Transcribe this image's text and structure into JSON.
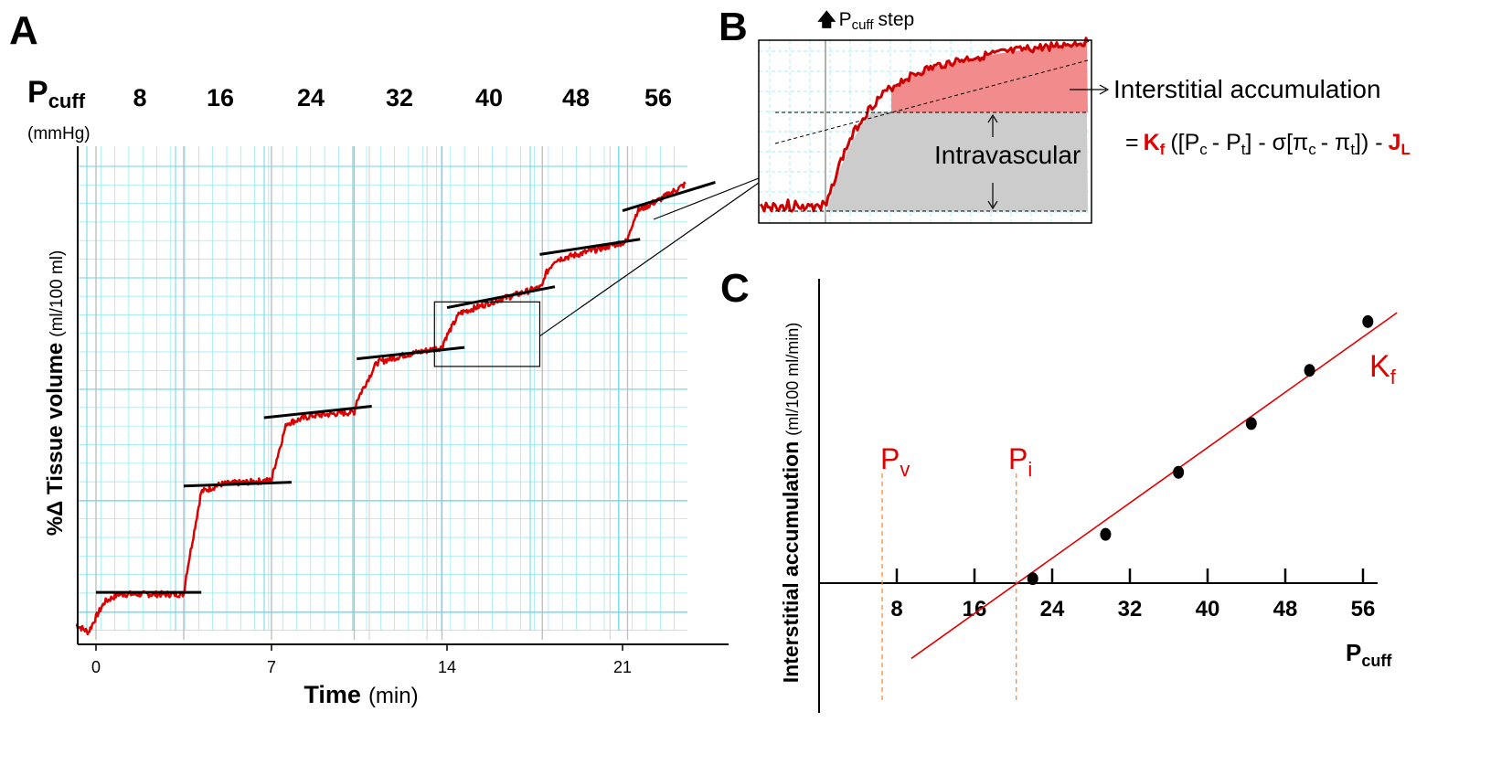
{
  "colors": {
    "trace": "#dd0000",
    "grid": "#8de8f0",
    "fit": "#000000",
    "accent": "#e00000",
    "fill": "#f28b8b",
    "gray": "#cccccc"
  },
  "panel_a": {
    "label": "A",
    "pcuff_main": "P",
    "pcuff_sub": "cuff",
    "unit": "(mmHg)",
    "ylabel_bold": "%Δ Tissue volume",
    "ylabel_unit": "(ml/100 ml)",
    "xlabel_bold": "Time",
    "xlabel_unit": "(min)"
  },
  "panel_b": {
    "label": "B",
    "step_arrow": "🡅",
    "step_p": "P",
    "step_sub": "cuff",
    "step_rest": "step",
    "interstitial_label": "Interstitial accumulation",
    "intravascular_label": "Intravascular",
    "eq_eq": "=",
    "eq_kf": "K",
    "eq_kf_sub": "f",
    "eq_a": "([P",
    "eq_pc_sub": "c",
    "eq_b": "- P",
    "eq_pt_sub": "t",
    "eq_c": "] - σ[π",
    "eq_pic_sub": "c",
    "eq_d": "- π",
    "eq_pit_sub": "t",
    "eq_e": "]) -",
    "eq_jl": "J",
    "eq_jl_sub": "L"
  },
  "panel_c": {
    "label": "C",
    "ylabel_bold": "Interstitial accumulation",
    "ylabel_unit": "(ml/100 ml/min)",
    "xlabel_main": "P",
    "xlabel_sub": "cuff",
    "pv_main": "P",
    "pv_sub": "v",
    "pi_main": "P",
    "pi_sub": "i",
    "kf_main": "K",
    "kf_sub": "f"
  },
  "chart_data": [
    {
      "panel": "A",
      "type": "line",
      "x_label": "Time (min)",
      "y_label": "%Δ Tissue volume (ml/100 ml)",
      "xlim": [
        -0.8,
        25
      ],
      "ylim": [
        0,
        13
      ],
      "x_ticks": [
        "0",
        "7",
        "14",
        "21"
      ],
      "x_tick_values": [
        0,
        7,
        14,
        21
      ],
      "pcuff_steps": [
        "8",
        "16",
        "24",
        "32",
        "40",
        "48",
        "56"
      ],
      "step_times": [
        0,
        3.5,
        7,
        10.3,
        13.8,
        17.8,
        21.2
      ],
      "plateau_levels": [
        0.6,
        3.2,
        5.2,
        6.8,
        8.2,
        9.5,
        10.9,
        12.6
      ],
      "trace_end": 23.5,
      "series": [
        {
          "values": [
            [
              -0.8,
              0.4
            ],
            [
              -0.3,
              0.2
            ],
            [
              0,
              0.6
            ],
            [
              0.35,
              1.0
            ],
            [
              0.9,
              1.2
            ],
            [
              3.5,
              1.2
            ],
            [
              3.6,
              1.7
            ],
            [
              4.2,
              3.9
            ],
            [
              5.0,
              4.1
            ],
            [
              7.0,
              4.2
            ],
            [
              7.1,
              4.5
            ],
            [
              7.6,
              5.7
            ],
            [
              8.6,
              5.9
            ],
            [
              10.3,
              6.0
            ],
            [
              10.4,
              6.3
            ],
            [
              11.2,
              7.3
            ],
            [
              12.3,
              7.5
            ],
            [
              13.8,
              7.7
            ],
            [
              13.9,
              7.9
            ],
            [
              14.5,
              8.6
            ],
            [
              15.8,
              8.9
            ],
            [
              17.3,
              9.2
            ],
            [
              17.8,
              9.3
            ],
            [
              17.9,
              9.6
            ],
            [
              18.3,
              10.0
            ],
            [
              19.5,
              10.2
            ],
            [
              21.2,
              10.5
            ],
            [
              21.3,
              10.8
            ],
            [
              21.6,
              11.3
            ],
            [
              22.5,
              11.6
            ],
            [
              23.5,
              12.0
            ]
          ]
        }
      ],
      "fit_lines": [
        [
          [
            0,
            1.25
          ],
          [
            4.2,
            1.25
          ]
        ],
        [
          [
            3.5,
            4.05
          ],
          [
            7.8,
            4.15
          ]
        ],
        [
          [
            6.7,
            5.85
          ],
          [
            11.0,
            6.15
          ]
        ],
        [
          [
            10.4,
            7.4
          ],
          [
            14.7,
            7.7
          ]
        ],
        [
          [
            14.0,
            8.75
          ],
          [
            18.3,
            9.3
          ]
        ],
        [
          [
            17.7,
            10.15
          ],
          [
            21.7,
            10.55
          ]
        ],
        [
          [
            21.0,
            11.3
          ],
          [
            24.7,
            12.05
          ]
        ]
      ],
      "inset_box": {
        "x": [
          13.5,
          17.7
        ],
        "y": [
          7.2,
          8.9
        ]
      }
    },
    {
      "panel": "B",
      "type": "area",
      "description_labels": [
        "Intravascular",
        "Interstitial accumulation"
      ],
      "x_grid_lines": 5,
      "y_grid_lines": 3
    },
    {
      "panel": "C",
      "type": "scatter",
      "x_label": "Pcuff",
      "y_label": "Interstitial accumulation (ml/100 ml/min)",
      "x_ticks": [
        "8",
        "16",
        "24",
        "32",
        "40",
        "48",
        "56"
      ],
      "x_tick_values": [
        8,
        16,
        24,
        32,
        40,
        48,
        56
      ],
      "xlim": [
        0,
        58
      ],
      "ylim": [
        -1.4,
        3.4
      ],
      "points": [
        [
          22,
          0.05
        ],
        [
          29.5,
          0.55
        ],
        [
          37,
          1.25
        ],
        [
          44.5,
          1.8
        ],
        [
          50.5,
          2.4
        ],
        [
          56.5,
          2.95
        ]
      ],
      "fit_line": [
        [
          9.5,
          -0.85
        ],
        [
          59.5,
          3.05
        ]
      ],
      "pv": 6.5,
      "pi": 20.3
    }
  ]
}
